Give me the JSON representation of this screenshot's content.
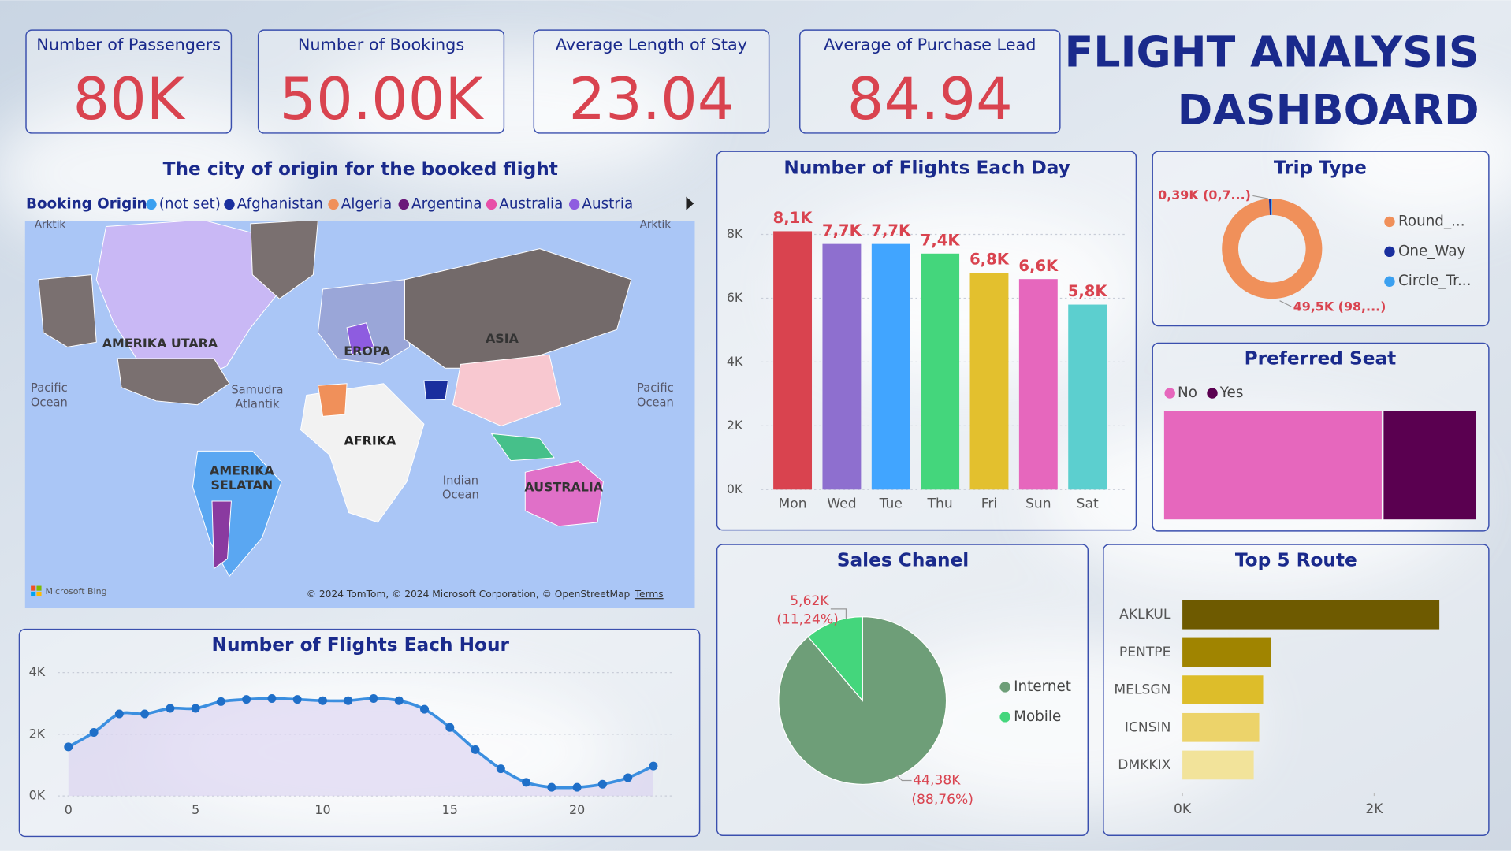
{
  "header": {
    "title_lines": [
      "FLIGHT ANALYSIS",
      "DASHBOARD"
    ]
  },
  "kpis": [
    {
      "label": "Number of Passengers",
      "value": "80K"
    },
    {
      "label": "Number of Bookings",
      "value": "50.00K"
    },
    {
      "label": "Average Length of Stay",
      "value": "23.04"
    },
    {
      "label": "Average of Purchase Lead",
      "value": "84.94"
    }
  ],
  "chart_data": [
    {
      "type": "map",
      "title": "The city of origin for the booked flight",
      "legend_title": "Booking Origin",
      "series": [
        {
          "name": "(not set)",
          "color": "#3ba0f0"
        },
        {
          "name": "Afghanistan",
          "color": "#1a2f9e"
        },
        {
          "name": "Algeria",
          "color": "#f0905a"
        },
        {
          "name": "Argentina",
          "color": "#6b1a7a"
        },
        {
          "name": "Australia",
          "color": "#e84fa8"
        },
        {
          "name": "Austria",
          "color": "#8e5ce0"
        }
      ],
      "region_labels": [
        [
          "Arktik"
        ],
        [
          "Arktik"
        ],
        [
          "AMERIKA UTARA"
        ],
        [
          "Pacific",
          "Ocean"
        ],
        [
          "Pacific",
          "Ocean"
        ],
        [
          "Samudra",
          "Atlantik"
        ],
        [
          "EROPA"
        ],
        [
          "ASIA"
        ],
        [
          "AFRIKA"
        ],
        [
          "AMERIKA",
          "SELATAN"
        ],
        [
          "Indian",
          "Ocean"
        ],
        [
          "AUSTRALIA"
        ]
      ],
      "provider": "Microsoft Bing",
      "attribution": "© 2024 TomTom, © 2024 Microsoft Corporation, © OpenStreetMap",
      "terms": "Terms"
    },
    {
      "type": "bar",
      "title": "Number of Flights Each Day",
      "categories": [
        "Mon",
        "Wed",
        "Tue",
        "Thu",
        "Fri",
        "Sun",
        "Sat"
      ],
      "values": [
        8100,
        7700,
        7700,
        7400,
        6800,
        6600,
        5800
      ],
      "value_labels": [
        "8,1K",
        "7,7K",
        "7,7K",
        "7,4K",
        "6,8K",
        "6,6K",
        "5,8K"
      ],
      "colors": [
        "#d9434f",
        "#8e6fcf",
        "#41a5ff",
        "#44d67c",
        "#e3c02e",
        "#e667bd",
        "#5ccfcf"
      ],
      "ylim": [
        0,
        8500
      ],
      "yticks": [
        {
          "value": 0,
          "label": "0K"
        },
        {
          "value": 2000,
          "label": "2K"
        },
        {
          "value": 4000,
          "label": "4K"
        },
        {
          "value": 6000,
          "label": "6K"
        },
        {
          "value": 8000,
          "label": "8K"
        }
      ],
      "grid": true
    },
    {
      "type": "donut",
      "title": "Trip Type",
      "categories": [
        "Round_...",
        "One_Way",
        "Circle_Tr..."
      ],
      "values": [
        49500,
        390,
        110
      ],
      "value_labels": [
        "49,5K (98,...)",
        "0,39K (0,7...)",
        null
      ],
      "colors": [
        "#f0905a",
        "#1a2f9e",
        "#3ba0f0"
      ]
    },
    {
      "type": "stacked_bar",
      "title": "Preferred Seat",
      "series": [
        {
          "name": "No",
          "color": "#e667bd",
          "values": [
            70
          ]
        },
        {
          "name": "Yes",
          "color": "#5a0050",
          "values": [
            30
          ]
        }
      ]
    },
    {
      "type": "pie",
      "title": "Sales Chanel",
      "categories": [
        "Internet",
        "Mobile"
      ],
      "values": [
        44380,
        5620
      ],
      "value_labels": [
        "44,38K",
        "5,62K"
      ],
      "percent_labels": [
        "(88,76%)",
        "(11,24%)"
      ],
      "colors": [
        "#6e9e78",
        "#44d67c"
      ]
    },
    {
      "type": "hbar",
      "title": "Top 5 Route",
      "categories": [
        "AKLKUL",
        "PENTPE",
        "MELSGN",
        "ICNSIN",
        "DMKKIX"
      ],
      "values": [
        2680,
        924,
        842,
        801,
        744
      ],
      "colors": [
        "#6e5a00",
        "#a08400",
        "#ddbd2a",
        "#ecd36a",
        "#f2e39a"
      ],
      "xlim": [
        0,
        3000
      ],
      "xticks": [
        {
          "value": 0,
          "label": "0K"
        },
        {
          "value": 2000,
          "label": "2K"
        }
      ]
    },
    {
      "type": "line",
      "title": "Number of Flights Each Hour",
      "x": [
        0,
        1,
        2,
        3,
        4,
        5,
        6,
        7,
        8,
        9,
        10,
        11,
        12,
        13,
        14,
        15,
        16,
        17,
        18,
        19,
        20,
        21,
        22,
        23
      ],
      "series": [
        {
          "color": "#3b8fe0",
          "values": [
            1590,
            2060,
            2660,
            2660,
            2840,
            2840,
            3060,
            3130,
            3160,
            3130,
            3090,
            3090,
            3160,
            3090,
            2810,
            2220,
            1500,
            880,
            440,
            280,
            280,
            380,
            590,
            970
          ]
        }
      ],
      "xlim": [
        0,
        23
      ],
      "xticks": [
        0,
        5,
        10,
        15,
        20
      ],
      "ylim": [
        0,
        4000
      ],
      "yticks": [
        {
          "value": 0,
          "label": "0K"
        },
        {
          "value": 2000,
          "label": "2K"
        },
        {
          "value": 4000,
          "label": "4K"
        }
      ],
      "grid": true
    }
  ]
}
